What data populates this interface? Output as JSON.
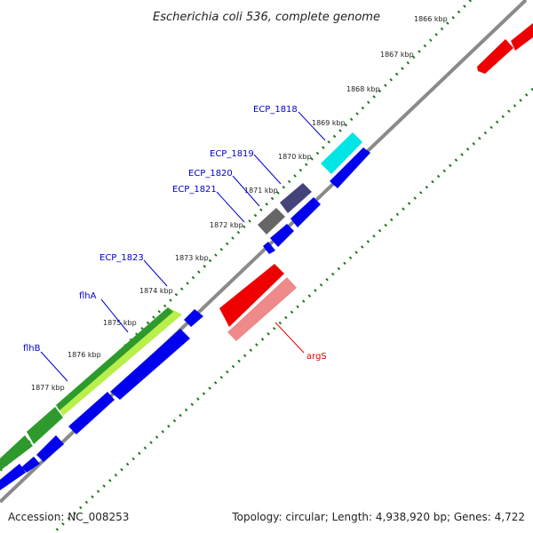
{
  "title": "Escherichia coli 536, complete genome",
  "footer": {
    "accession": "Accession: NC_008253",
    "summary": "Topology: circular; Length: 4,938,920 bp; Genes: 4,722"
  },
  "kbp_ticks": [
    "1866 kbp",
    "1867 kbp",
    "1868 kbp",
    "1869 kbp",
    "1870 kbp",
    "1871 kbp",
    "1872 kbp",
    "1873 kbp",
    "1874 kbp",
    "1875 kbp",
    "1876 kbp",
    "1877 kbp"
  ],
  "gene_labels": {
    "ecp_1818": "ECP_1818",
    "ecp_1819": "ECP_1819",
    "ecp_1820": "ECP_1820",
    "ecp_1821": "ECP_1821",
    "ecp_1823": "ECP_1823",
    "flha": "flhA",
    "flhb": "flhB",
    "args": "argS"
  },
  "colors": {
    "backbone": "#8a8a8a",
    "cds_blue": "#0000ee",
    "cyan": "#00e5e5",
    "navy": "#44447a",
    "gray_gene": "#666666",
    "green": "#2e9a2e",
    "light_green": "#b8ef4a",
    "red": "#ee0000",
    "pink": "#ee8a8a",
    "tick_green": "#1f7a1f",
    "label_blue": "#0000cc",
    "label_red": "#dd0000"
  }
}
